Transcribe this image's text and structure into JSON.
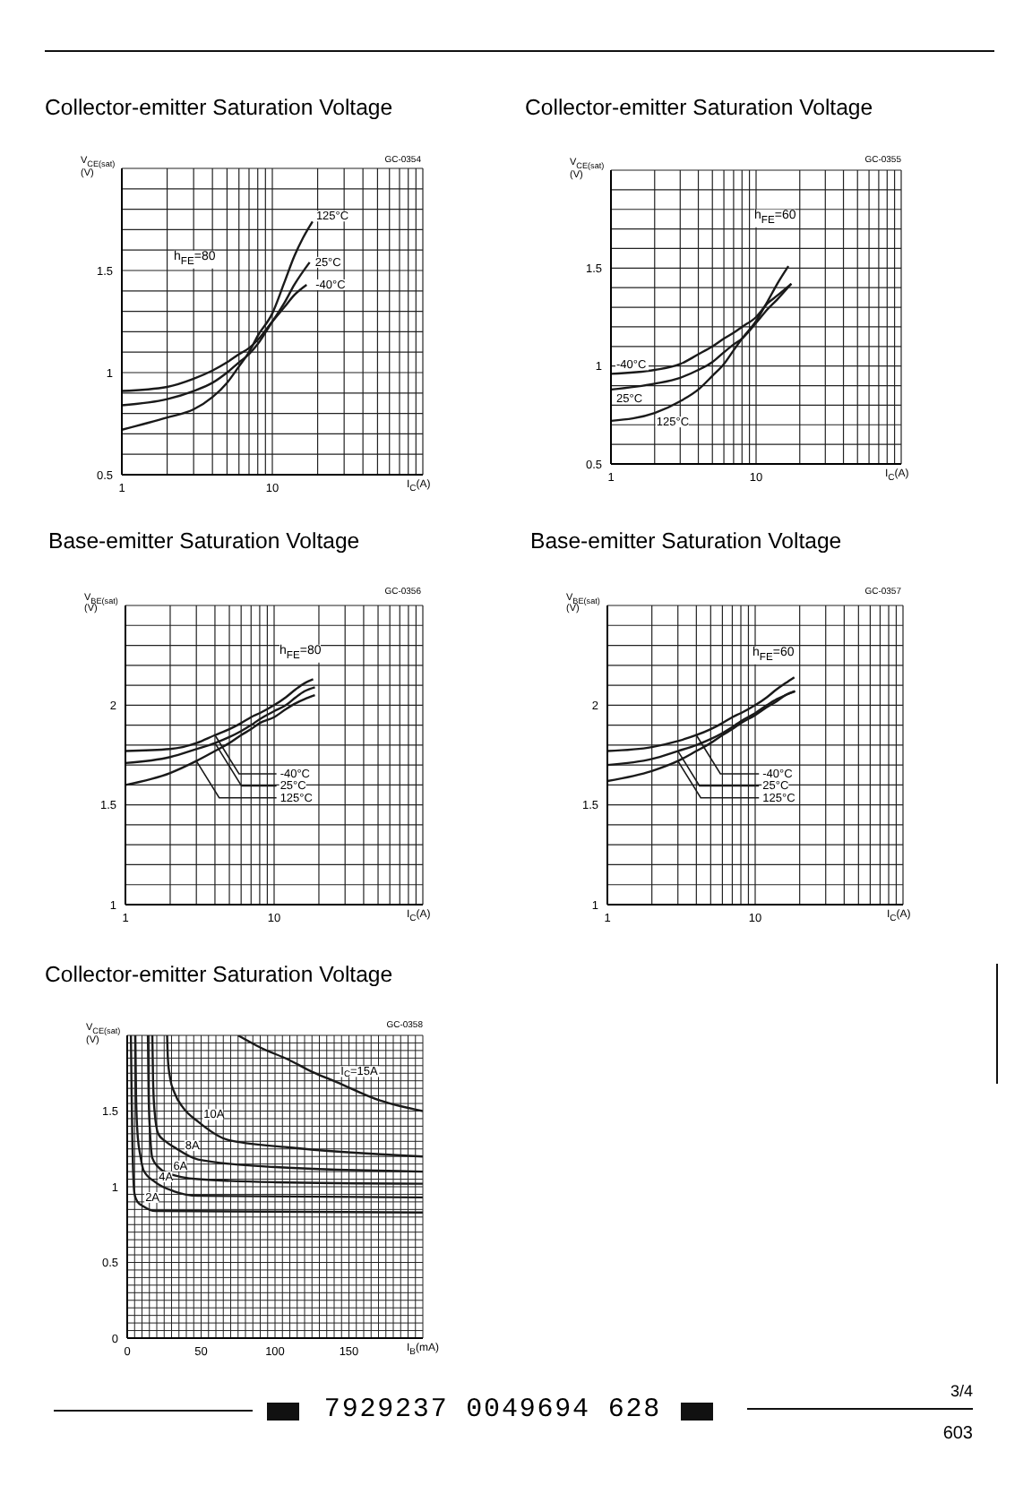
{
  "chart_data": [
    {
      "type": "line",
      "title": "Collector-emitter Saturation Voltage",
      "xlabel": "I$_{C}$(A)",
      "ylabel": "V$_{CE(sat)}$ (V)",
      "log": "x",
      "xlim": [
        1,
        100
      ],
      "xticks": [
        1,
        {
          "value": 2,
          "label": null
        },
        {
          "value": 3,
          "label": null
        },
        {
          "value": 4,
          "label": null
        },
        {
          "value": 5,
          "label": null
        },
        {
          "value": 6,
          "label": null
        },
        {
          "value": 7,
          "label": null
        },
        {
          "value": 8,
          "label": null
        },
        {
          "value": 9,
          "label": null
        },
        10,
        {
          "value": 20,
          "label": null
        },
        {
          "value": 30,
          "label": null
        },
        {
          "value": 40,
          "label": null
        },
        {
          "value": 50,
          "label": null
        },
        {
          "value": 60,
          "label": null
        },
        {
          "value": 70,
          "label": null
        },
        {
          "value": 80,
          "label": null
        },
        {
          "value": 90,
          "label": null
        },
        {
          "value": 100,
          "label": null
        }
      ],
      "ylim": [
        0.5,
        2
      ],
      "yticks": [
        0.5,
        {
          "value": 0.6,
          "label": null
        },
        {
          "value": 0.7,
          "label": null
        },
        {
          "value": 0.8,
          "label": null
        },
        {
          "value": 0.9,
          "label": null
        },
        1,
        {
          "value": 1.1,
          "label": null
        },
        {
          "value": 1.2,
          "label": null
        },
        {
          "value": 1.3,
          "label": null
        },
        {
          "value": 1.4,
          "label": null
        },
        1.5,
        {
          "value": 1.6,
          "label": null
        },
        {
          "value": 1.7,
          "label": null
        },
        {
          "value": 1.8,
          "label": null
        },
        {
          "value": 1.9,
          "label": null
        },
        {
          "value": 2,
          "label": null
        }
      ],
      "grid": true,
      "marker": "none",
      "annotations": [
        "GC-0354",
        "h$_{FE}$=80"
      ],
      "series": [
        {
          "name": "125°C",
          "color": "#1a1a1a",
          "x": [
            1,
            2,
            3,
            4,
            5,
            6,
            7,
            8,
            10,
            12,
            14,
            16,
            18.5
          ],
          "values": [
            0.72,
            0.78,
            0.82,
            0.88,
            0.95,
            1.03,
            1.1,
            1.18,
            1.29,
            1.44,
            1.57,
            1.66,
            1.74
          ]
        },
        {
          "name": "25°C",
          "color": "#1a1a1a",
          "x": [
            1,
            2,
            3,
            4,
            5,
            6,
            7,
            8,
            10,
            12,
            14,
            17.7
          ],
          "values": [
            0.84,
            0.87,
            0.91,
            0.95,
            1.0,
            1.05,
            1.09,
            1.14,
            1.25,
            1.34,
            1.43,
            1.54
          ]
        },
        {
          "name": "-40°C",
          "color": "#1a1a1a",
          "x": [
            1,
            2,
            3,
            4,
            5,
            6,
            7,
            8,
            10,
            12,
            14,
            16.9
          ],
          "values": [
            0.91,
            0.93,
            0.97,
            1.01,
            1.05,
            1.09,
            1.12,
            1.16,
            1.25,
            1.32,
            1.38,
            1.43
          ]
        }
      ]
    },
    {
      "type": "line",
      "title": "Collector-emitter Saturation Voltage",
      "xlabel": "I$_{C}$(A)",
      "ylabel": "V$_{CE(sat)}$ (V)",
      "log": "x",
      "xlim": [
        1,
        100
      ],
      "xticks": [
        1,
        {
          "value": 2,
          "label": null
        },
        {
          "value": 3,
          "label": null
        },
        {
          "value": 4,
          "label": null
        },
        {
          "value": 5,
          "label": null
        },
        {
          "value": 6,
          "label": null
        },
        {
          "value": 7,
          "label": null
        },
        {
          "value": 8,
          "label": null
        },
        {
          "value": 9,
          "label": null
        },
        10,
        {
          "value": 20,
          "label": null
        },
        {
          "value": 30,
          "label": null
        },
        {
          "value": 40,
          "label": null
        },
        {
          "value": 50,
          "label": null
        },
        {
          "value": 60,
          "label": null
        },
        {
          "value": 70,
          "label": null
        },
        {
          "value": 80,
          "label": null
        },
        {
          "value": 90,
          "label": null
        },
        {
          "value": 100,
          "label": null
        }
      ],
      "ylim": [
        0.5,
        2
      ],
      "yticks": [
        0.5,
        {
          "value": 0.6,
          "label": null
        },
        {
          "value": 0.7,
          "label": null
        },
        {
          "value": 0.8,
          "label": null
        },
        {
          "value": 0.9,
          "label": null
        },
        1,
        {
          "value": 1.1,
          "label": null
        },
        {
          "value": 1.2,
          "label": null
        },
        {
          "value": 1.3,
          "label": null
        },
        {
          "value": 1.4,
          "label": null
        },
        1.5,
        {
          "value": 1.6,
          "label": null
        },
        {
          "value": 1.7,
          "label": null
        },
        {
          "value": 1.8,
          "label": null
        },
        {
          "value": 1.9,
          "label": null
        },
        {
          "value": 2,
          "label": null
        }
      ],
      "grid": true,
      "marker": "none",
      "annotations": [
        "GC-0355",
        "h$_{FE}$=60"
      ],
      "series": [
        {
          "name": "-40°C",
          "color": "#1a1a1a",
          "x": [
            1,
            2,
            3,
            4,
            5,
            6,
            7,
            8,
            10,
            12,
            14,
            17.5
          ],
          "values": [
            0.96,
            0.98,
            1.01,
            1.06,
            1.1,
            1.14,
            1.17,
            1.2,
            1.25,
            1.32,
            1.36,
            1.42
          ]
        },
        {
          "name": "25°C",
          "color": "#1a1a1a",
          "x": [
            1,
            2,
            3,
            4,
            5,
            6,
            7,
            8,
            10,
            12,
            14,
            17.5
          ],
          "values": [
            0.88,
            0.91,
            0.94,
            0.98,
            1.02,
            1.07,
            1.11,
            1.14,
            1.22,
            1.29,
            1.34,
            1.42
          ]
        },
        {
          "name": "125°C",
          "color": "#1a1a1a",
          "x": [
            1,
            2,
            3,
            4,
            5,
            6,
            7,
            8,
            10,
            12,
            14,
            16.7
          ],
          "values": [
            0.72,
            0.76,
            0.82,
            0.88,
            0.95,
            1.01,
            1.08,
            1.14,
            1.23,
            1.33,
            1.42,
            1.51
          ]
        }
      ]
    },
    {
      "type": "line",
      "title": "Base-emitter Saturation Voltage",
      "xlabel": "I$_{C}$(A)",
      "ylabel": "V$_{BE(sat)}$ (V)",
      "log": "x",
      "xlim": [
        1,
        100
      ],
      "xticks": [
        1,
        {
          "value": 2,
          "label": null
        },
        {
          "value": 3,
          "label": null
        },
        {
          "value": 4,
          "label": null
        },
        {
          "value": 5,
          "label": null
        },
        {
          "value": 6,
          "label": null
        },
        {
          "value": 7,
          "label": null
        },
        {
          "value": 8,
          "label": null
        },
        {
          "value": 9,
          "label": null
        },
        10,
        {
          "value": 20,
          "label": null
        },
        {
          "value": 30,
          "label": null
        },
        {
          "value": 40,
          "label": null
        },
        {
          "value": 50,
          "label": null
        },
        {
          "value": 60,
          "label": null
        },
        {
          "value": 70,
          "label": null
        },
        {
          "value": 80,
          "label": null
        },
        {
          "value": 90,
          "label": null
        },
        {
          "value": 100,
          "label": null
        }
      ],
      "ylim": [
        1,
        2.5
      ],
      "yticks": [
        1,
        {
          "value": 1.1,
          "label": null
        },
        {
          "value": 1.2,
          "label": null
        },
        {
          "value": 1.3,
          "label": null
        },
        {
          "value": 1.4,
          "label": null
        },
        1.5,
        {
          "value": 1.6,
          "label": null
        },
        {
          "value": 1.7,
          "label": null
        },
        {
          "value": 1.8,
          "label": null
        },
        {
          "value": 1.9,
          "label": null
        },
        2,
        {
          "value": 2.1,
          "label": null
        },
        {
          "value": 2.2,
          "label": null
        },
        {
          "value": 2.3,
          "label": null
        },
        {
          "value": 2.4,
          "label": null
        },
        {
          "value": 2.5,
          "label": null
        }
      ],
      "grid": true,
      "marker": "none",
      "annotations": [
        "GC-0356",
        "h$_{FE}$=80"
      ],
      "series": [
        {
          "name": "-40°C",
          "color": "#1a1a1a",
          "x": [
            1,
            2,
            3,
            4,
            5,
            6,
            7,
            8,
            10,
            12,
            14,
            16,
            18.3
          ],
          "values": [
            1.77,
            1.78,
            1.81,
            1.85,
            1.88,
            1.91,
            1.94,
            1.96,
            2.0,
            2.04,
            2.08,
            2.11,
            2.13
          ]
        },
        {
          "name": "25°C",
          "color": "#1a1a1a",
          "x": [
            1,
            2,
            3,
            4,
            5,
            6,
            7,
            8,
            10,
            12,
            14,
            16,
            18.8
          ],
          "values": [
            1.71,
            1.74,
            1.78,
            1.81,
            1.84,
            1.87,
            1.9,
            1.93,
            1.97,
            2.0,
            2.04,
            2.07,
            2.09
          ]
        },
        {
          "name": "125°C",
          "color": "#1a1a1a",
          "x": [
            1,
            2,
            3,
            4,
            5,
            6,
            7,
            8,
            10,
            12,
            14,
            16,
            18.8
          ],
          "values": [
            1.6,
            1.66,
            1.72,
            1.77,
            1.81,
            1.85,
            1.88,
            1.91,
            1.94,
            1.98,
            2.01,
            2.03,
            2.05
          ]
        }
      ]
    },
    {
      "type": "line",
      "title": "Base-emitter Saturation Voltage",
      "xlabel": "I$_{C}$(A)",
      "ylabel": "V$_{BE(sat)}$ (V)",
      "log": "x",
      "xlim": [
        1,
        100
      ],
      "xticks": [
        1,
        {
          "value": 2,
          "label": null
        },
        {
          "value": 3,
          "label": null
        },
        {
          "value": 4,
          "label": null
        },
        {
          "value": 5,
          "label": null
        },
        {
          "value": 6,
          "label": null
        },
        {
          "value": 7,
          "label": null
        },
        {
          "value": 8,
          "label": null
        },
        {
          "value": 9,
          "label": null
        },
        10,
        {
          "value": 20,
          "label": null
        },
        {
          "value": 30,
          "label": null
        },
        {
          "value": 40,
          "label": null
        },
        {
          "value": 50,
          "label": null
        },
        {
          "value": 60,
          "label": null
        },
        {
          "value": 70,
          "label": null
        },
        {
          "value": 80,
          "label": null
        },
        {
          "value": 90,
          "label": null
        },
        {
          "value": 100,
          "label": null
        }
      ],
      "ylim": [
        1,
        2.5
      ],
      "yticks": [
        1,
        {
          "value": 1.1,
          "label": null
        },
        {
          "value": 1.2,
          "label": null
        },
        {
          "value": 1.3,
          "label": null
        },
        {
          "value": 1.4,
          "label": null
        },
        1.5,
        {
          "value": 1.6,
          "label": null
        },
        {
          "value": 1.7,
          "label": null
        },
        {
          "value": 1.8,
          "label": null
        },
        {
          "value": 1.9,
          "label": null
        },
        2,
        {
          "value": 2.1,
          "label": null
        },
        {
          "value": 2.2,
          "label": null
        },
        {
          "value": 2.3,
          "label": null
        },
        {
          "value": 2.4,
          "label": null
        },
        {
          "value": 2.5,
          "label": null
        }
      ],
      "grid": true,
      "marker": "none",
      "annotations": [
        "GC-0357",
        "h$_{FE}$=60"
      ],
      "series": [
        {
          "name": "-40°C",
          "color": "#1a1a1a",
          "x": [
            1,
            2,
            3,
            4,
            5,
            6,
            7,
            8,
            10,
            12,
            14,
            16,
            18.4
          ],
          "values": [
            1.77,
            1.79,
            1.82,
            1.85,
            1.88,
            1.91,
            1.94,
            1.96,
            2.0,
            2.04,
            2.08,
            2.11,
            2.14
          ]
        },
        {
          "name": "25°C",
          "color": "#1a1a1a",
          "x": [
            1,
            2,
            3,
            4,
            5,
            6,
            7,
            8,
            10,
            12,
            14,
            16,
            18.6
          ],
          "values": [
            1.7,
            1.73,
            1.77,
            1.8,
            1.83,
            1.86,
            1.89,
            1.92,
            1.96,
            2.0,
            2.03,
            2.05,
            2.07
          ]
        },
        {
          "name": "125°C",
          "color": "#1a1a1a",
          "x": [
            1,
            2,
            3,
            4,
            5,
            6,
            7,
            8,
            10,
            12,
            14,
            16,
            18.6
          ],
          "values": [
            1.62,
            1.67,
            1.72,
            1.77,
            1.81,
            1.85,
            1.88,
            1.91,
            1.95,
            1.99,
            2.02,
            2.05,
            2.07
          ]
        }
      ]
    },
    {
      "type": "line",
      "title": "Collector-emitter Saturation Voltage",
      "xlabel": "I$_{B}$(mA)",
      "ylabel": "V$_{CE(sat)}$ (V)",
      "xlim": [
        0,
        200
      ],
      "xticks": [
        0,
        {
          "value": 5,
          "label": null
        },
        {
          "value": 10,
          "label": null
        },
        {
          "value": 15,
          "label": null
        },
        {
          "value": 20,
          "label": null
        },
        {
          "value": 25,
          "label": null
        },
        {
          "value": 30,
          "label": null
        },
        {
          "value": 35,
          "label": null
        },
        {
          "value": 40,
          "label": null
        },
        {
          "value": 45,
          "label": null
        },
        50,
        {
          "value": 55,
          "label": null
        },
        {
          "value": 60,
          "label": null
        },
        {
          "value": 65,
          "label": null
        },
        {
          "value": 70,
          "label": null
        },
        {
          "value": 75,
          "label": null
        },
        {
          "value": 80,
          "label": null
        },
        {
          "value": 85,
          "label": null
        },
        {
          "value": 90,
          "label": null
        },
        {
          "value": 95,
          "label": null
        },
        100,
        {
          "value": 105,
          "label": null
        },
        {
          "value": 110,
          "label": null
        },
        {
          "value": 115,
          "label": null
        },
        {
          "value": 120,
          "label": null
        },
        {
          "value": 125,
          "label": null
        },
        {
          "value": 130,
          "label": null
        },
        {
          "value": 135,
          "label": null
        },
        {
          "value": 140,
          "label": null
        },
        {
          "value": 145,
          "label": null
        },
        150,
        {
          "value": 155,
          "label": null
        },
        {
          "value": 160,
          "label": null
        },
        {
          "value": 165,
          "label": null
        },
        {
          "value": 170,
          "label": null
        },
        {
          "value": 175,
          "label": null
        },
        {
          "value": 180,
          "label": null
        },
        {
          "value": 185,
          "label": null
        },
        {
          "value": 190,
          "label": null
        },
        {
          "value": 195,
          "label": null
        },
        {
          "value": 200,
          "label": null
        }
      ],
      "ylim": [
        0,
        2
      ],
      "yticks": [
        0,
        {
          "value": 0.05,
          "label": null
        },
        {
          "value": 0.1,
          "label": null
        },
        {
          "value": 0.15,
          "label": null
        },
        {
          "value": 0.2,
          "label": null
        },
        {
          "value": 0.25,
          "label": null
        },
        {
          "value": 0.3,
          "label": null
        },
        {
          "value": 0.35,
          "label": null
        },
        {
          "value": 0.4,
          "label": null
        },
        {
          "value": 0.45,
          "label": null
        },
        0.5,
        {
          "value": 0.55,
          "label": null
        },
        {
          "value": 0.6,
          "label": null
        },
        {
          "value": 0.65,
          "label": null
        },
        {
          "value": 0.7,
          "label": null
        },
        {
          "value": 0.75,
          "label": null
        },
        {
          "value": 0.8,
          "label": null
        },
        {
          "value": 0.85,
          "label": null
        },
        {
          "value": 0.9,
          "label": null
        },
        {
          "value": 0.95,
          "label": null
        },
        1,
        {
          "value": 1.05,
          "label": null
        },
        {
          "value": 1.1,
          "label": null
        },
        {
          "value": 1.15,
          "label": null
        },
        {
          "value": 1.2,
          "label": null
        },
        {
          "value": 1.25,
          "label": null
        },
        {
          "value": 1.3,
          "label": null
        },
        {
          "value": 1.35,
          "label": null
        },
        {
          "value": 1.4,
          "label": null
        },
        {
          "value": 1.45,
          "label": null
        },
        1.5,
        {
          "value": 1.55,
          "label": null
        },
        {
          "value": 1.6,
          "label": null
        },
        {
          "value": 1.65,
          "label": null
        },
        {
          "value": 1.7,
          "label": null
        },
        {
          "value": 1.75,
          "label": null
        },
        {
          "value": 1.8,
          "label": null
        },
        {
          "value": 1.85,
          "label": null
        },
        {
          "value": 1.9,
          "label": null
        },
        {
          "value": 1.95,
          "label": null
        },
        {
          "value": 2,
          "label": null
        }
      ],
      "grid": true,
      "marker": "none",
      "annotations": [
        "GC-0358",
        "7929237 0049694 628",
        "3/4",
        "603"
      ],
      "series": [
        {
          "name": "I$_{C}$=15A",
          "color": "#1a1a1a",
          "x": [
            75,
            90,
            109,
            125,
            142,
            171,
            200
          ],
          "values": [
            2.0,
            1.92,
            1.84,
            1.76,
            1.69,
            1.57,
            1.5
          ]
        },
        {
          "name": "10A",
          "color": "#1a1a1a",
          "x": [
            27,
            27.5,
            29,
            32,
            38,
            48,
            68,
            109,
            200
          ],
          "values": [
            2.0,
            1.85,
            1.72,
            1.62,
            1.52,
            1.43,
            1.31,
            1.26,
            1.2
          ]
        },
        {
          "name": "8A",
          "color": "#1a1a1a",
          "x": [
            17,
            17.5,
            18.5,
            21,
            26,
            32,
            48,
            100,
            200
          ],
          "values": [
            2.0,
            1.7,
            1.5,
            1.35,
            1.3,
            1.26,
            1.18,
            1.13,
            1.1
          ]
        },
        {
          "name": "6A",
          "color": "#1a1a1a",
          "x": [
            14,
            14.5,
            15.5,
            17,
            21,
            27.5,
            48,
            100,
            200
          ],
          "values": [
            2.0,
            1.6,
            1.35,
            1.19,
            1.13,
            1.09,
            1.05,
            1.03,
            1.02
          ]
        },
        {
          "name": "4A",
          "color": "#1a1a1a",
          "x": [
            5.5,
            6,
            7,
            9,
            11,
            19,
            31.6,
            48,
            200
          ],
          "values": [
            2.0,
            1.6,
            1.35,
            1.2,
            1.11,
            1.03,
            0.97,
            0.94,
            0.93
          ]
        },
        {
          "name": "2A",
          "color": "#1a1a1a",
          "x": [
            2.5,
            3,
            3.5,
            4.2,
            5,
            7,
            11,
            19,
            200
          ],
          "values": [
            2.0,
            1.6,
            1.3,
            1.05,
            0.95,
            0.9,
            0.87,
            0.84,
            0.83
          ]
        }
      ]
    }
  ]
}
